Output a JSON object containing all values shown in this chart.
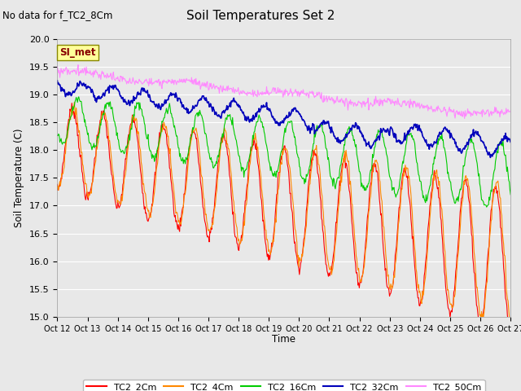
{
  "title": "Soil Temperatures Set 2",
  "subtitle": "No data for f_TC2_8Cm",
  "ylabel": "Soil Temperature (C)",
  "xlabel": "Time",
  "ylim": [
    15.0,
    20.0
  ],
  "yticks": [
    15.0,
    15.5,
    16.0,
    16.5,
    17.0,
    17.5,
    18.0,
    18.5,
    19.0,
    19.5,
    20.0
  ],
  "xtick_labels": [
    "Oct 12",
    "Oct 13",
    "Oct 14",
    "Oct 15",
    "Oct 16",
    "Oct 17",
    "Oct 18",
    "Oct 19",
    "Oct 20",
    "Oct 21",
    "Oct 22",
    "Oct 23",
    "Oct 24",
    "Oct 25",
    "Oct 26",
    "Oct 27"
  ],
  "colors": {
    "TC2_2Cm": "#ff0000",
    "TC2_4Cm": "#ff8800",
    "TC2_16Cm": "#00cc00",
    "TC2_32Cm": "#0000bb",
    "TC2_50Cm": "#ff88ff"
  },
  "background_color": "#e8e8e8",
  "grid_color": "#ffffff",
  "si_met_box_color": "#ffff99",
  "si_met_text_color": "#880000"
}
